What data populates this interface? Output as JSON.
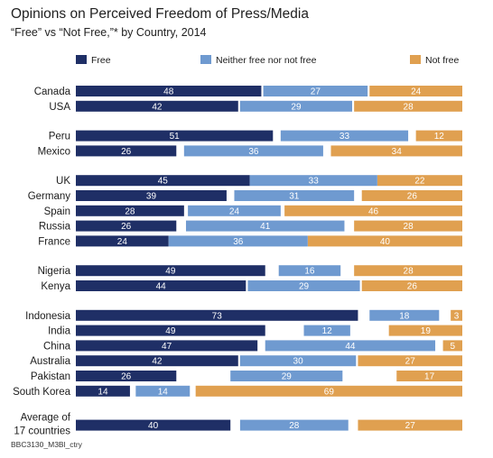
{
  "chart_data": {
    "type": "bar",
    "title": "Opinions on Perceived Freedom of Press/Media",
    "subtitle": "“Free” vs “Not Free,”* by Country, 2014",
    "footer": "BBC3130_M3Bl_ctry",
    "colors": {
      "free": "#1f2f66",
      "neither": "#6f9ad0",
      "not_free": "#e0a050"
    },
    "series": [
      {
        "key": "free",
        "name": "Free"
      },
      {
        "key": "neither",
        "name": "Neither free nor not free"
      },
      {
        "key": "not_free",
        "name": "Not free"
      }
    ],
    "groups": [
      [
        {
          "label": "Canada",
          "free": 48,
          "neither": 27,
          "not_free": 24
        },
        {
          "label": "USA",
          "free": 42,
          "neither": 29,
          "not_free": 28
        }
      ],
      [
        {
          "label": "Peru",
          "free": 51,
          "neither": 33,
          "not_free": 12
        },
        {
          "label": "Mexico",
          "free": 26,
          "neither": 36,
          "not_free": 34
        }
      ],
      [
        {
          "label": "UK",
          "free": 45,
          "neither": 33,
          "not_free": 22
        },
        {
          "label": "Germany",
          "free": 39,
          "neither": 31,
          "not_free": 26
        },
        {
          "label": "Spain",
          "free": 28,
          "neither": 24,
          "not_free": 46
        },
        {
          "label": "Russia",
          "free": 26,
          "neither": 41,
          "not_free": 28
        },
        {
          "label": "France",
          "free": 24,
          "neither": 36,
          "not_free": 40
        }
      ],
      [
        {
          "label": "Nigeria",
          "free": 49,
          "neither": 16,
          "not_free": 28
        },
        {
          "label": "Kenya",
          "free": 44,
          "neither": 29,
          "not_free": 26
        }
      ],
      [
        {
          "label": "Indonesia",
          "free": 73,
          "neither": 18,
          "not_free": 3
        },
        {
          "label": "India",
          "free": 49,
          "neither": 12,
          "not_free": 19
        },
        {
          "label": "China",
          "free": 47,
          "neither": 44,
          "not_free": 5
        },
        {
          "label": "Australia",
          "free": 42,
          "neither": 30,
          "not_free": 27
        },
        {
          "label": "Pakistan",
          "free": 26,
          "neither": 29,
          "not_free": 17
        },
        {
          "label": "South Korea",
          "free": 14,
          "neither": 14,
          "not_free": 69
        }
      ],
      [
        {
          "label": "Average of 17 countries",
          "label_lines": [
            "Average of",
            "17 countries"
          ],
          "free": 40,
          "neither": 28,
          "not_free": 27
        }
      ]
    ]
  }
}
